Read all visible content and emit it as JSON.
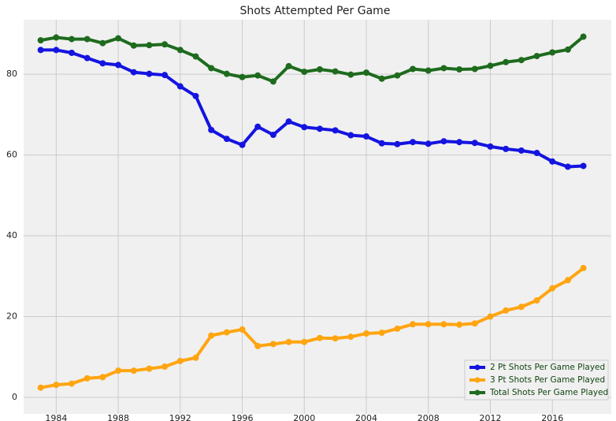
{
  "chart_data": {
    "type": "line",
    "title": "Shots Attempted Per Game",
    "x": [
      1983,
      1984,
      1985,
      1986,
      1987,
      1988,
      1989,
      1990,
      1991,
      1992,
      1993,
      1994,
      1995,
      1996,
      1997,
      1998,
      1999,
      2000,
      2001,
      2002,
      2003,
      2004,
      2005,
      2006,
      2007,
      2008,
      2009,
      2010,
      2011,
      2012,
      2013,
      2014,
      2015,
      2016,
      2017,
      2018
    ],
    "series": [
      {
        "name": "2 Pt Shots Per Game Played",
        "color": "#1414e0",
        "values": [
          86,
          86,
          85.3,
          84,
          82.7,
          82.3,
          80.5,
          80.1,
          79.8,
          77,
          74.6,
          66.2,
          64,
          62.5,
          67,
          65,
          68.3,
          66.9,
          66.5,
          66.1,
          64.9,
          64.6,
          62.9,
          62.7,
          63.2,
          62.8,
          63.4,
          63.2,
          63,
          62.1,
          61.5,
          61.1,
          60.5,
          58.4,
          57.1,
          57.3
        ]
      },
      {
        "name": "3 Pt Shots Per Game Played",
        "color": "#ffa510",
        "values": [
          2.4,
          3.1,
          3.4,
          4.7,
          5,
          6.6,
          6.6,
          7.1,
          7.6,
          9,
          9.8,
          15.3,
          16.1,
          16.8,
          12.7,
          13.2,
          13.7,
          13.7,
          14.7,
          14.6,
          15,
          15.8,
          16,
          17,
          18.1,
          18.1,
          18.1,
          18,
          18.3,
          20,
          21.5,
          22.4,
          24,
          27,
          29,
          32
        ]
      },
      {
        "name": "Total Shots Per Game Played",
        "color": "#1e6b1e",
        "values": [
          88.4,
          89.1,
          88.7,
          88.7,
          87.7,
          88.9,
          87.1,
          87.2,
          87.4,
          86,
          84.4,
          81.5,
          80.1,
          79.3,
          79.7,
          78.2,
          82,
          80.6,
          81.2,
          80.7,
          79.9,
          80.4,
          78.9,
          79.7,
          81.3,
          80.9,
          81.5,
          81.2,
          81.3,
          82.1,
          83,
          83.5,
          84.5,
          85.4,
          86.1,
          89.3
        ]
      }
    ],
    "xlim": [
      1981.9,
      2019.8
    ],
    "ylim": [
      -4.1,
      93.5
    ],
    "xticks": [
      1984,
      1988,
      1992,
      1996,
      2000,
      2004,
      2008,
      2012,
      2016
    ],
    "yticks": [
      0,
      20,
      40,
      60,
      80
    ],
    "grid": true,
    "legend": "lower right"
  }
}
